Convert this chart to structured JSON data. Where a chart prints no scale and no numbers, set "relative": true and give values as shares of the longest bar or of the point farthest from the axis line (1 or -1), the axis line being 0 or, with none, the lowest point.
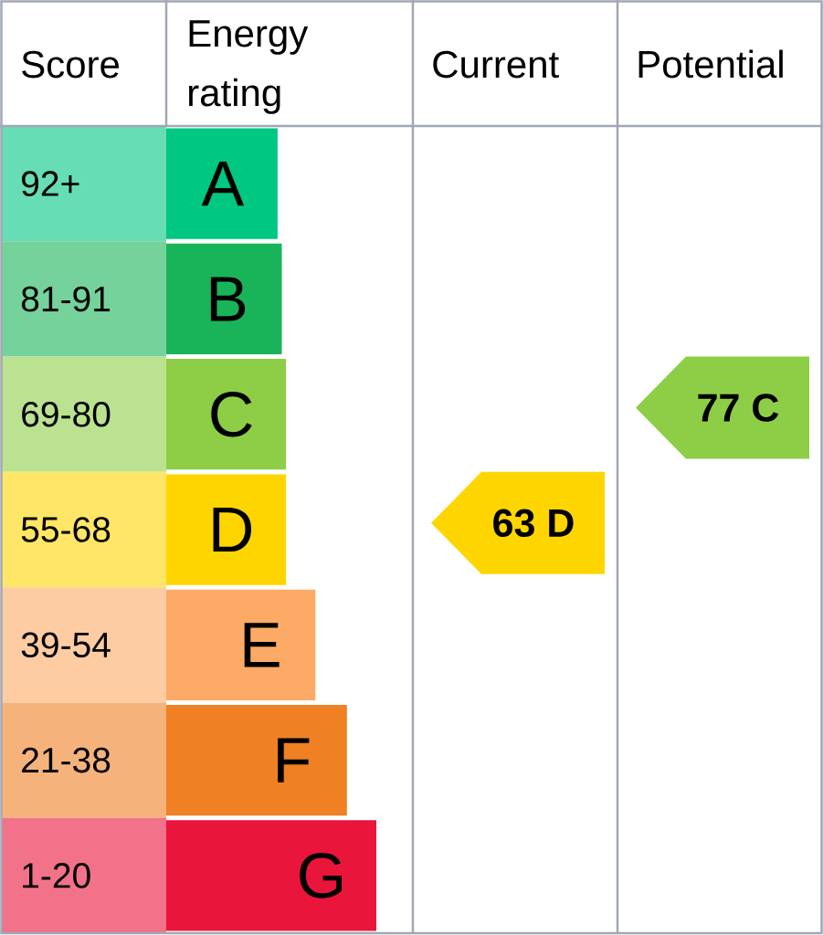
{
  "chart_data": {
    "type": "bar",
    "orientation": "horizontal",
    "relative": true,
    "ylabel": "Score",
    "xlabel": "Energy rating",
    "categories": [
      "92+",
      "81-91",
      "69-80",
      "55-68",
      "39-54",
      "21-38",
      "1-20"
    ],
    "values": [
      0.53,
      0.55,
      0.57,
      0.57,
      0.71,
      0.86,
      1
    ],
    "colors": [
      "#00c781",
      "#19b459",
      "#8dce46",
      "#ffd500",
      "#fcaa65",
      "#ef8023",
      "#e9153b"
    ],
    "annotations": [
      "Current",
      "63 D",
      "Potential",
      "77 C",
      {
        "text": "A",
        "x": 0.53,
        "y": "92+"
      },
      {
        "text": "B",
        "x": 0.55,
        "y": "81-91"
      },
      {
        "text": "C",
        "x": 0.57,
        "y": "69-80"
      },
      {
        "text": "D",
        "x": 0.57,
        "y": "55-68"
      },
      {
        "text": "E",
        "x": 0.71,
        "y": "39-54"
      },
      {
        "text": "F",
        "x": 0.86,
        "y": "21-38"
      },
      {
        "text": "G",
        "x": 1,
        "y": "1-20"
      }
    ]
  }
}
